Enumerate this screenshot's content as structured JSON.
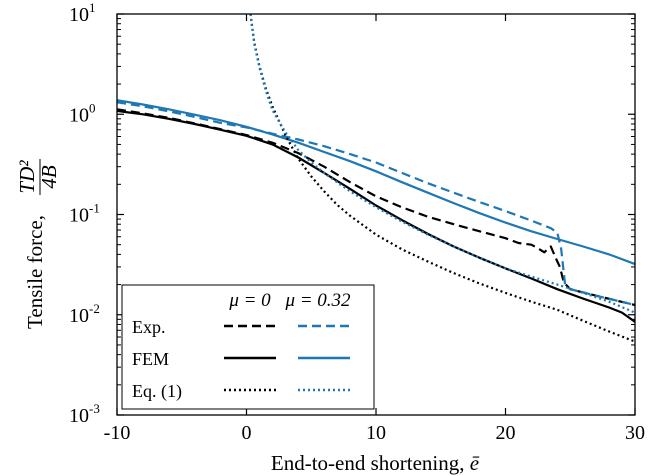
{
  "chart_data": {
    "type": "line",
    "xlabel": "End-to-end shortening, ",
    "xlabel_symbol": "ē",
    "ylabel": "Tensile force, ",
    "ylabel_fraction_num": "TD²",
    "ylabel_fraction_den": "4B",
    "xlim": [
      -10,
      30
    ],
    "ylim": [
      0.001,
      10
    ],
    "yscale": "log",
    "grid": false,
    "x_ticks": [
      "-10",
      "0",
      "10",
      "20",
      "30"
    ],
    "y_ticks": [
      {
        "base": "10",
        "exp": "-3"
      },
      {
        "base": "10",
        "exp": "-2"
      },
      {
        "base": "10",
        "exp": "-1"
      },
      {
        "base": "10",
        "exp": "0"
      },
      {
        "base": "10",
        "exp": "1"
      }
    ],
    "colors": {
      "mu0": "#000000",
      "mu032": "#1f77b4"
    },
    "legend": {
      "placement": "bottom-left",
      "column_headers": [
        "μ = 0",
        "μ = 0.32"
      ],
      "rows": [
        "Exp.",
        "FEM",
        "Eq. (1)"
      ]
    },
    "series": [
      {
        "method": "Exp.",
        "mu": "0",
        "style": "dashed",
        "color": "#000000",
        "points": [
          [
            -10,
            1.12
          ],
          [
            -8,
            1.02
          ],
          [
            -6,
            0.92
          ],
          [
            -4,
            0.81
          ],
          [
            -2,
            0.71
          ],
          [
            0,
            0.62
          ],
          [
            2,
            0.52
          ],
          [
            4,
            0.41
          ],
          [
            6,
            0.3
          ],
          [
            8,
            0.21
          ],
          [
            10,
            0.152
          ],
          [
            12,
            0.118
          ],
          [
            14,
            0.095
          ],
          [
            16,
            0.08
          ],
          [
            18,
            0.068
          ],
          [
            20,
            0.058
          ],
          [
            21,
            0.052
          ],
          [
            22,
            0.05
          ],
          [
            22.5,
            0.046
          ],
          [
            23,
            0.042
          ],
          [
            23.5,
            0.048
          ],
          [
            24,
            0.034
          ],
          [
            24.2,
            0.03
          ],
          [
            24.5,
            0.021
          ],
          [
            25,
            0.018
          ],
          [
            27,
            0.0155
          ],
          [
            30,
            0.0125
          ]
        ]
      },
      {
        "method": "Exp.",
        "mu": "0.32",
        "style": "dashed",
        "color": "#1f77b4",
        "points": [
          [
            -10,
            1.32
          ],
          [
            -8,
            1.2
          ],
          [
            -6,
            1.07
          ],
          [
            -4,
            0.94
          ],
          [
            -2,
            0.82
          ],
          [
            0,
            0.74
          ],
          [
            2,
            0.64
          ],
          [
            4,
            0.56
          ],
          [
            6,
            0.48
          ],
          [
            8,
            0.4
          ],
          [
            10,
            0.33
          ],
          [
            12,
            0.26
          ],
          [
            14,
            0.205
          ],
          [
            16,
            0.165
          ],
          [
            18,
            0.133
          ],
          [
            20,
            0.108
          ],
          [
            22,
            0.087
          ],
          [
            23.5,
            0.073
          ],
          [
            24,
            0.066
          ],
          [
            24.3,
            0.045
          ],
          [
            24.6,
            0.02
          ],
          [
            25,
            0.018
          ],
          [
            27,
            0.0155
          ],
          [
            30,
            0.0125
          ]
        ]
      },
      {
        "method": "FEM",
        "mu": "0",
        "style": "solid",
        "color": "#000000",
        "points": [
          [
            -10,
            1.08
          ],
          [
            -8,
            1.0
          ],
          [
            -6,
            0.9
          ],
          [
            -4,
            0.8
          ],
          [
            -2,
            0.7
          ],
          [
            0,
            0.61
          ],
          [
            2,
            0.5
          ],
          [
            4,
            0.37
          ],
          [
            6,
            0.26
          ],
          [
            8,
            0.18
          ],
          [
            10,
            0.123
          ],
          [
            12,
            0.088
          ],
          [
            14,
            0.064
          ],
          [
            16,
            0.048
          ],
          [
            18,
            0.037
          ],
          [
            20,
            0.029
          ],
          [
            22,
            0.023
          ],
          [
            24,
            0.018
          ],
          [
            26,
            0.0145
          ],
          [
            28,
            0.0118
          ],
          [
            29,
            0.0105
          ],
          [
            30,
            0.0085
          ]
        ]
      },
      {
        "method": "FEM",
        "mu": "0.32",
        "style": "solid",
        "color": "#1f77b4",
        "points": [
          [
            -10,
            1.38
          ],
          [
            -8,
            1.25
          ],
          [
            -6,
            1.12
          ],
          [
            -4,
            0.99
          ],
          [
            -2,
            0.87
          ],
          [
            0,
            0.75
          ],
          [
            2,
            0.63
          ],
          [
            4,
            0.52
          ],
          [
            6,
            0.42
          ],
          [
            8,
            0.34
          ],
          [
            10,
            0.27
          ],
          [
            12,
            0.21
          ],
          [
            14,
            0.165
          ],
          [
            16,
            0.13
          ],
          [
            18,
            0.103
          ],
          [
            20,
            0.083
          ],
          [
            22,
            0.068
          ],
          [
            24,
            0.057
          ],
          [
            26,
            0.048
          ],
          [
            28,
            0.04
          ],
          [
            30,
            0.032
          ]
        ]
      },
      {
        "method": "Eq. (1)",
        "mu": "0",
        "style": "dotted",
        "color": "#000000",
        "points": [
          [
            0.3,
            10
          ],
          [
            0.6,
            5.2
          ],
          [
            1,
            3.0
          ],
          [
            1.5,
            1.8
          ],
          [
            2,
            1.2
          ],
          [
            3,
            0.62
          ],
          [
            4,
            0.36
          ],
          [
            5,
            0.24
          ],
          [
            6,
            0.17
          ],
          [
            7,
            0.125
          ],
          [
            8,
            0.097
          ],
          [
            10,
            0.063
          ],
          [
            12,
            0.045
          ],
          [
            14,
            0.034
          ],
          [
            16,
            0.026
          ],
          [
            18,
            0.0205
          ],
          [
            20,
            0.0165
          ],
          [
            22,
            0.0135
          ],
          [
            24,
            0.0112
          ],
          [
            26,
            0.0087
          ],
          [
            28,
            0.0068
          ],
          [
            30,
            0.0054
          ]
        ]
      },
      {
        "method": "Eq. (1)",
        "mu": "0.32",
        "style": "dotted",
        "color": "#1f77b4",
        "points": [
          [
            0.3,
            10
          ],
          [
            0.6,
            5.0
          ],
          [
            1,
            2.9
          ],
          [
            1.5,
            1.7
          ],
          [
            2,
            1.1
          ],
          [
            3,
            0.66
          ],
          [
            4,
            0.44
          ],
          [
            5,
            0.33
          ],
          [
            6,
            0.26
          ],
          [
            7,
            0.21
          ],
          [
            8,
            0.17
          ],
          [
            10,
            0.118
          ],
          [
            12,
            0.085
          ],
          [
            14,
            0.063
          ],
          [
            16,
            0.048
          ],
          [
            18,
            0.037
          ],
          [
            20,
            0.029
          ],
          [
            22,
            0.024
          ],
          [
            24,
            0.02
          ],
          [
            26,
            0.0165
          ],
          [
            28,
            0.0135
          ],
          [
            30,
            0.0105
          ]
        ]
      }
    ]
  }
}
